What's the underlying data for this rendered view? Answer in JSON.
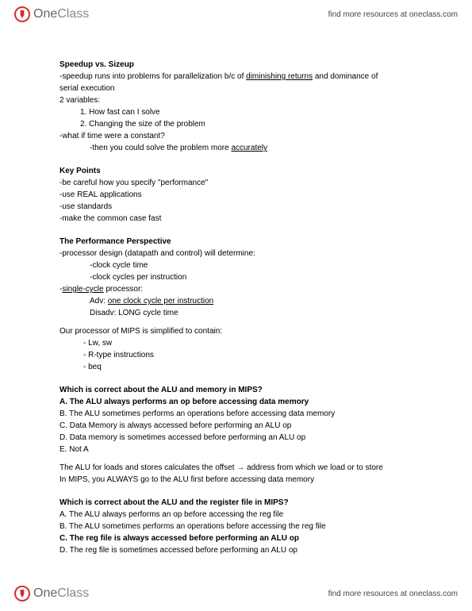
{
  "header": {
    "logo_one": "One",
    "logo_class": "Class",
    "link": "find more resources at oneclass.com"
  },
  "s1": {
    "title": "Speedup vs. Sizeup",
    "l1a": "-speedup runs into problems for parallelization b/c of ",
    "l1u": "diminishing returns",
    "l1b": " and dominance of",
    "l2": "serial execution",
    "l3": "2 variables:",
    "li1": "1.   How fast can I solve",
    "li2": "2.   Changing the size of the problem",
    "l4": "-what if time were a constant?",
    "l5a": "-then you could solve the problem more ",
    "l5u": "accurately"
  },
  "s2": {
    "title": "Key Points",
    "l1": "-be careful how you specify \"performance\"",
    "l2": "-use REAL applications",
    "l3": "-use standards",
    "l4": "-make the common case fast"
  },
  "s3": {
    "title": "The Performance Perspective",
    "l1": "-processor design (datapath and control) will determine:",
    "l2": "-clock cycle time",
    "l3": "-clock cycles per instruction",
    "l4a": "-",
    "l4u": "single-cycle",
    "l4b": " processor:",
    "l5a": "Adv: ",
    "l5u": "one clock cycle per instruction",
    "l6": "Disadv: LONG cycle time",
    "l7": "Our processor of MIPS is simplified to contain:",
    "li1": "-    Lw, sw",
    "li2": "-    R-type instructions",
    "li3": "-    beq"
  },
  "s4": {
    "title": "Which is correct about the ALU and memory in MIPS?",
    "a": "A. The ALU always performs an op before accessing data memory",
    "b": "B. The ALU sometimes performs an operations before accessing data memory",
    "c": "C. Data Memory is always accessed before performing an ALU op",
    "d": "D. Data memory is  sometimes accessed before performing an ALU op",
    "e": "E. Not A",
    "n1": "The ALU for loads and stores calculates the offset  → address from which we load or to store",
    "n2": "In MIPS, you ALWAYS go to the ALU first before accessing data memory"
  },
  "s5": {
    "title": "Which is correct about the ALU and the register file in MIPS?",
    "a": "A. The ALU always performs an op before accessing the reg file",
    "b": "B. The ALU sometimes performs an operations before accessing the reg file",
    "c": "C. The reg file is always accessed before performing an ALU op",
    "d": "D. The reg file is sometimes accessed before performing an ALU op"
  },
  "footer": {
    "link": "find more resources at oneclass.com"
  }
}
